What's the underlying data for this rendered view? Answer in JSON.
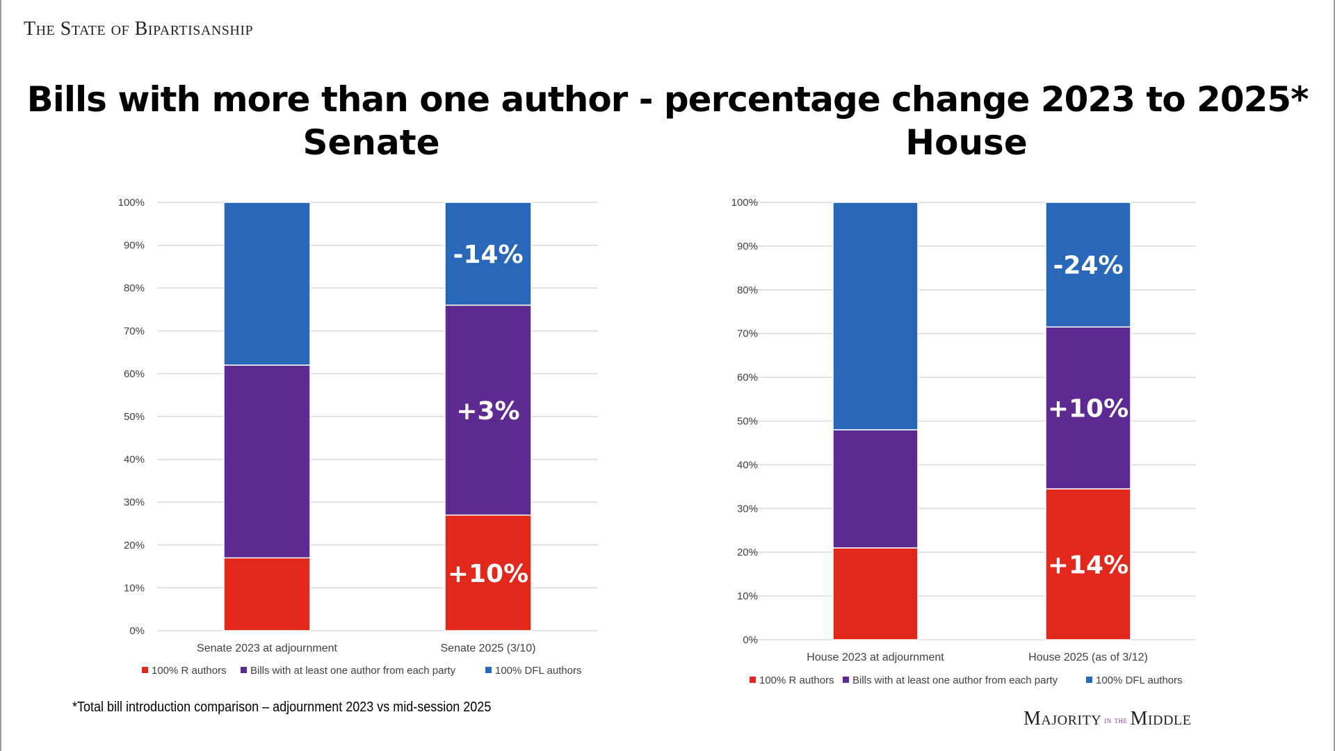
{
  "header": {
    "brand": "The State of Bipartisanship",
    "title": "Bills with more than one author - percentage change 2023 to 2025*"
  },
  "colors": {
    "r": "#e2271b",
    "both": "#5c2a91",
    "dfl": "#2968b8",
    "grid": "#d9d9d9",
    "axis_text": "#404040"
  },
  "chart_data": [
    {
      "type": "bar",
      "stacked": true,
      "title": "Senate",
      "categories": [
        "Senate 2023 at adjournment",
        "Senate 2025 (3/10)"
      ],
      "series": [
        {
          "name": "100% R authors",
          "color_key": "r",
          "values": [
            17,
            27
          ]
        },
        {
          "name": "Bills with at least one author from each party",
          "color_key": "both",
          "values": [
            45,
            49
          ]
        },
        {
          "name": "100% DFL authors",
          "color_key": "dfl",
          "values": [
            38,
            24
          ]
        }
      ],
      "annotations": [
        {
          "category_index": 1,
          "series_index": 2,
          "text": "-14%"
        },
        {
          "category_index": 1,
          "series_index": 1,
          "text": "+3%"
        },
        {
          "category_index": 1,
          "series_index": 0,
          "text": "+10%"
        }
      ],
      "ylim": [
        0,
        100
      ],
      "yticks": [
        "0%",
        "10%",
        "20%",
        "30%",
        "40%",
        "50%",
        "60%",
        "70%",
        "80%",
        "90%",
        "100%"
      ],
      "legend": "bottom",
      "grid": true
    },
    {
      "type": "bar",
      "stacked": true,
      "title": "House",
      "categories": [
        "House 2023 at adjournment",
        "House 2025 (as of 3/12)"
      ],
      "series": [
        {
          "name": "100% R authors",
          "color_key": "r",
          "values": [
            21,
            34.5
          ]
        },
        {
          "name": "Bills with at least one author from each party",
          "color_key": "both",
          "values": [
            27,
            37
          ]
        },
        {
          "name": "100% DFL authors",
          "color_key": "dfl",
          "values": [
            52,
            28.5
          ]
        }
      ],
      "annotations": [
        {
          "category_index": 1,
          "series_index": 2,
          "text": "-24%"
        },
        {
          "category_index": 1,
          "series_index": 1,
          "text": "+10%"
        },
        {
          "category_index": 1,
          "series_index": 0,
          "text": "+14%"
        }
      ],
      "ylim": [
        0,
        100
      ],
      "yticks": [
        "0%",
        "10%",
        "20%",
        "30%",
        "40%",
        "50%",
        "60%",
        "70%",
        "80%",
        "90%",
        "100%"
      ],
      "legend": "bottom",
      "grid": true
    }
  ],
  "footer": {
    "footnote": "*Total bill introduction comparison – adjournment 2023 vs mid-session 2025",
    "brand_main": "Majority",
    "brand_small": "in the",
    "brand_end": "Middle"
  }
}
